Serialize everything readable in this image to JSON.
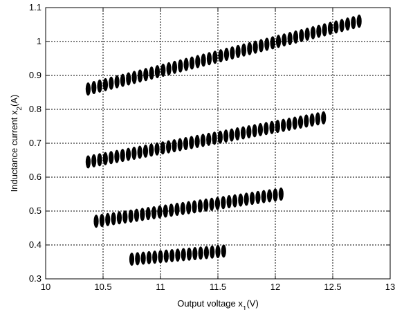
{
  "chart_data": {
    "type": "scatter",
    "title": "",
    "xlabel": "Output voltage x",
    "xlabel_sub": "1",
    "xlabel_unit": "(V)",
    "ylabel": "Inductance current x",
    "ylabel_sub": "2",
    "ylabel_unit": "(A)",
    "xlim": [
      10,
      13
    ],
    "ylim": [
      0.3,
      1.1
    ],
    "xticks": [
      10,
      10.5,
      11,
      11.5,
      12,
      12.5,
      13
    ],
    "yticks": [
      0.3,
      0.4,
      0.5,
      0.6,
      0.7,
      0.8,
      0.9,
      1,
      1.1
    ],
    "xtick_labels": [
      "10",
      "10.5",
      "11",
      "11.5",
      "12",
      "12.5",
      "13"
    ],
    "ytick_labels": [
      "0.3",
      "0.4",
      "0.5",
      "0.6",
      "0.7",
      "0.8",
      "0.9",
      "1",
      "1.1"
    ],
    "grid": true,
    "marker_color": "#000000",
    "series": [
      {
        "x_start": 10.37,
        "x_end": 12.73,
        "y_start": 0.86,
        "y_end": 1.06,
        "count": 48
      },
      {
        "x_start": 10.37,
        "x_end": 12.42,
        "y_start": 0.645,
        "y_end": 0.775,
        "count": 42
      },
      {
        "x_start": 10.44,
        "x_end": 12.05,
        "y_start": 0.47,
        "y_end": 0.55,
        "count": 33
      },
      {
        "x_start": 10.75,
        "x_end": 11.55,
        "y_start": 0.358,
        "y_end": 0.382,
        "count": 17
      }
    ]
  }
}
